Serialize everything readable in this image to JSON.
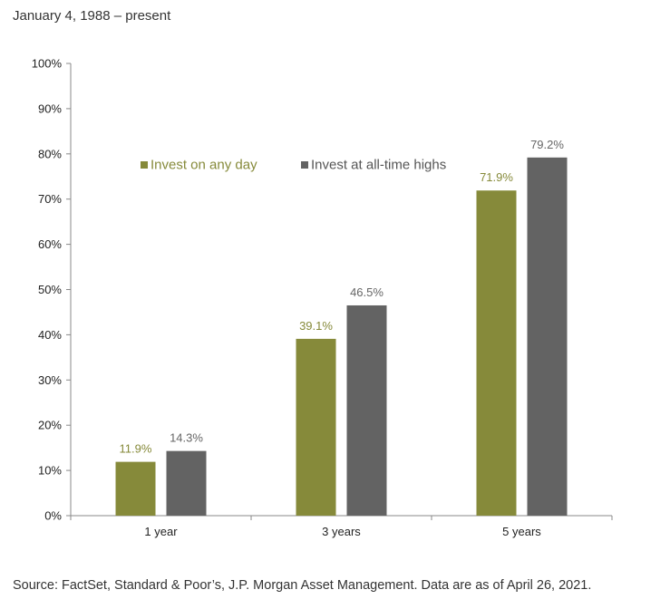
{
  "subtitle": "January 4, 1988 – present",
  "source": "Source: FactSet, Standard & Poor’s, J.P. Morgan Asset Management. Data are as of April 26, 2021.",
  "chart_data": {
    "type": "bar",
    "title": "",
    "xlabel": "",
    "ylabel": "",
    "categories": [
      "1 year",
      "3 years",
      "5 years"
    ],
    "ylim": [
      0,
      100
    ],
    "yticks": [
      0,
      10,
      20,
      30,
      40,
      50,
      60,
      70,
      80,
      90,
      100
    ],
    "ytick_labels": [
      "0%",
      "10%",
      "20%",
      "30%",
      "40%",
      "50%",
      "60%",
      "70%",
      "80%",
      "90%",
      "100%"
    ],
    "grid": false,
    "legend_position": "top-left",
    "series": [
      {
        "name": "Invest on any day",
        "color": "#868a3a",
        "values": [
          11.9,
          39.1,
          71.9
        ],
        "labels": [
          "11.9%",
          "39.1%",
          "71.9%"
        ]
      },
      {
        "name": "Invest at all-time highs",
        "color": "#636363",
        "values": [
          14.3,
          46.5,
          79.2
        ],
        "labels": [
          "14.3%",
          "46.5%",
          "79.2%"
        ]
      }
    ]
  }
}
